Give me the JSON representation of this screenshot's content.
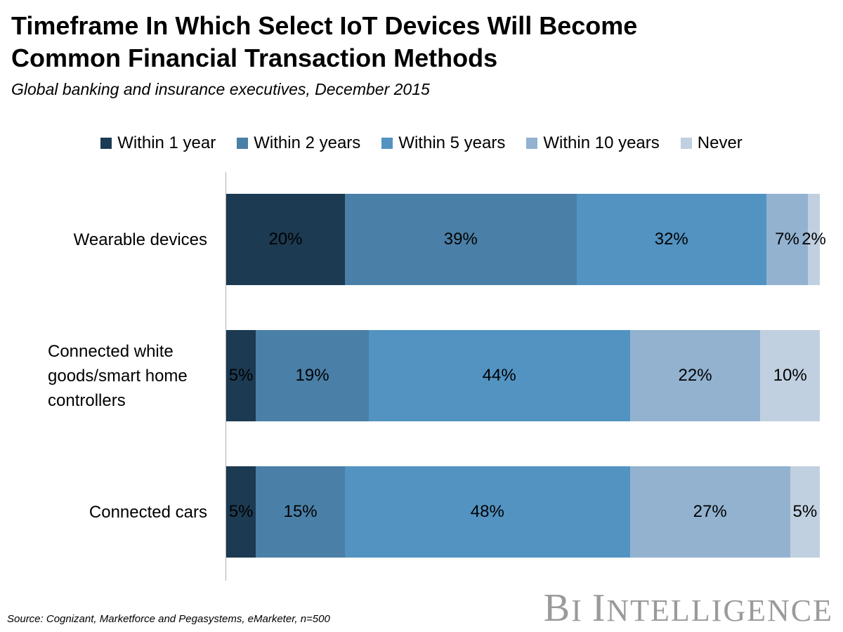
{
  "chart_data": {
    "type": "bar",
    "orientation": "horizontal",
    "stacked": true,
    "title": "Timeframe In Which Select IoT Devices Will Become Common Financial Transaction Methods",
    "subtitle": "Global banking and insurance executives, December 2015",
    "categories": [
      "Wearable devices",
      "Connected white goods/smart home controllers",
      "Connected cars"
    ],
    "series": [
      {
        "name": "Within 1 year",
        "color": "#1c3a52",
        "values": [
          20,
          5,
          5
        ],
        "labels": [
          "20%",
          "5%",
          "5%"
        ]
      },
      {
        "name": "Within 2 years",
        "color": "#4a7fa7",
        "values": [
          39,
          19,
          15
        ],
        "labels": [
          "39%",
          "19%",
          "15%"
        ]
      },
      {
        "name": "Within 5 years",
        "color": "#5293c2",
        "values": [
          32,
          44,
          48
        ],
        "labels": [
          "32%",
          "44%",
          "48%"
        ]
      },
      {
        "name": "Within 10 years",
        "color": "#92b2d0",
        "values": [
          7,
          22,
          27
        ],
        "labels": [
          "7%",
          "22%",
          "27%"
        ]
      },
      {
        "name": "Never",
        "color": "#c0d0e0",
        "values": [
          2,
          10,
          5
        ],
        "labels": [
          "2%",
          "10%",
          "5%"
        ]
      }
    ],
    "xlim": [
      0,
      100
    ],
    "legend_position": "top",
    "grid": false
  },
  "footer": {
    "source": "Source: Cognizant, Marketforce and Pegasystems, eMarketer, n=500",
    "brand": "BI INTELLIGENCE"
  }
}
